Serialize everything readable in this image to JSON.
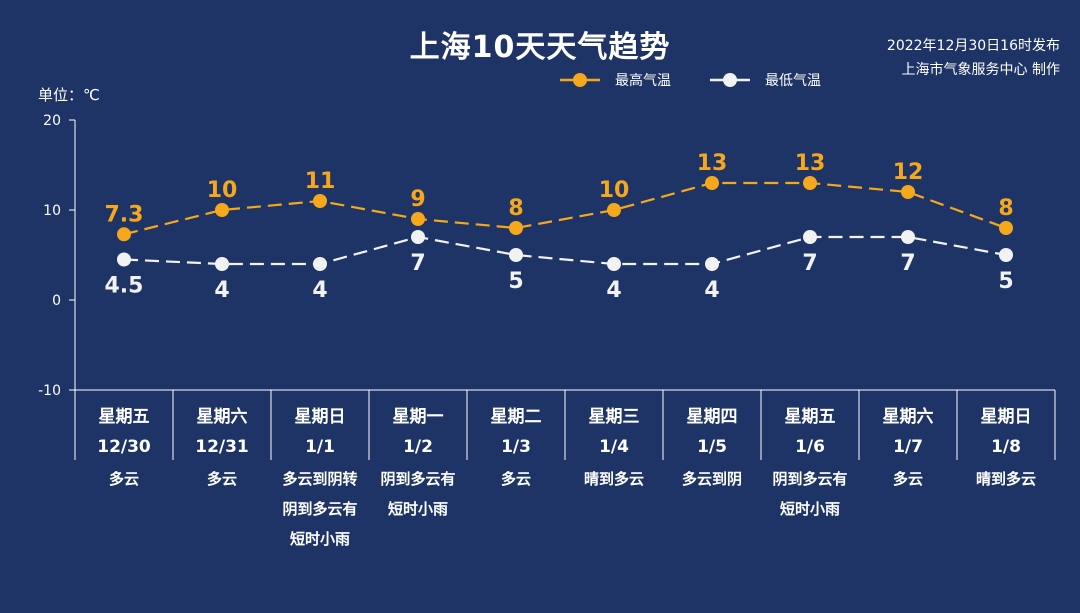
{
  "title": "上海10天天气趋势",
  "publish": {
    "date_line": "2022年12月30日16时发布",
    "source_line": "上海市气象服务中心 制作"
  },
  "unit_label": "单位：℃",
  "colors": {
    "background": "#1f3466",
    "high": "#f5a81c",
    "low": "#f2f2f2",
    "axis": "#ffffff"
  },
  "chart_data": {
    "type": "line",
    "title": "上海10天天气趋势",
    "ylabel": "单位：℃",
    "ylim": [
      -10,
      20
    ],
    "yticks": [
      -10,
      0,
      10,
      20
    ],
    "grid": false,
    "legend_position": "top-right",
    "days": [
      "星期五",
      "星期六",
      "星期日",
      "星期一",
      "星期二",
      "星期三",
      "星期四",
      "星期五",
      "星期六",
      "星期日"
    ],
    "dates": [
      "12/30",
      "12/31",
      "1/1",
      "1/2",
      "1/3",
      "1/4",
      "1/5",
      "1/6",
      "1/7",
      "1/8"
    ],
    "weather": [
      [
        "多云"
      ],
      [
        "多云"
      ],
      [
        "多云到阴转",
        "阴到多云有",
        "短时小雨"
      ],
      [
        "阴到多云有",
        "短时小雨"
      ],
      [
        "多云"
      ],
      [
        "晴到多云"
      ],
      [
        "多云到阴"
      ],
      [
        "阴到多云有",
        "短时小雨"
      ],
      [
        "多云"
      ],
      [
        "晴到多云"
      ]
    ],
    "series": [
      {
        "name": "最高气温",
        "values": [
          7.3,
          10,
          11,
          9,
          8,
          10,
          13,
          13,
          12,
          8
        ],
        "labels": [
          "7.3",
          "10",
          "11",
          "9",
          "8",
          "10",
          "13",
          "13",
          "12",
          "8"
        ],
        "color": "#f5a81c"
      },
      {
        "name": "最低气温",
        "values": [
          4.5,
          4,
          4,
          7,
          5,
          4,
          4,
          7,
          7,
          5
        ],
        "labels": [
          "4.5",
          "4",
          "4",
          "7",
          "5",
          "4",
          "4",
          "7",
          "7",
          "5"
        ],
        "color": "#f2f2f2"
      }
    ]
  }
}
